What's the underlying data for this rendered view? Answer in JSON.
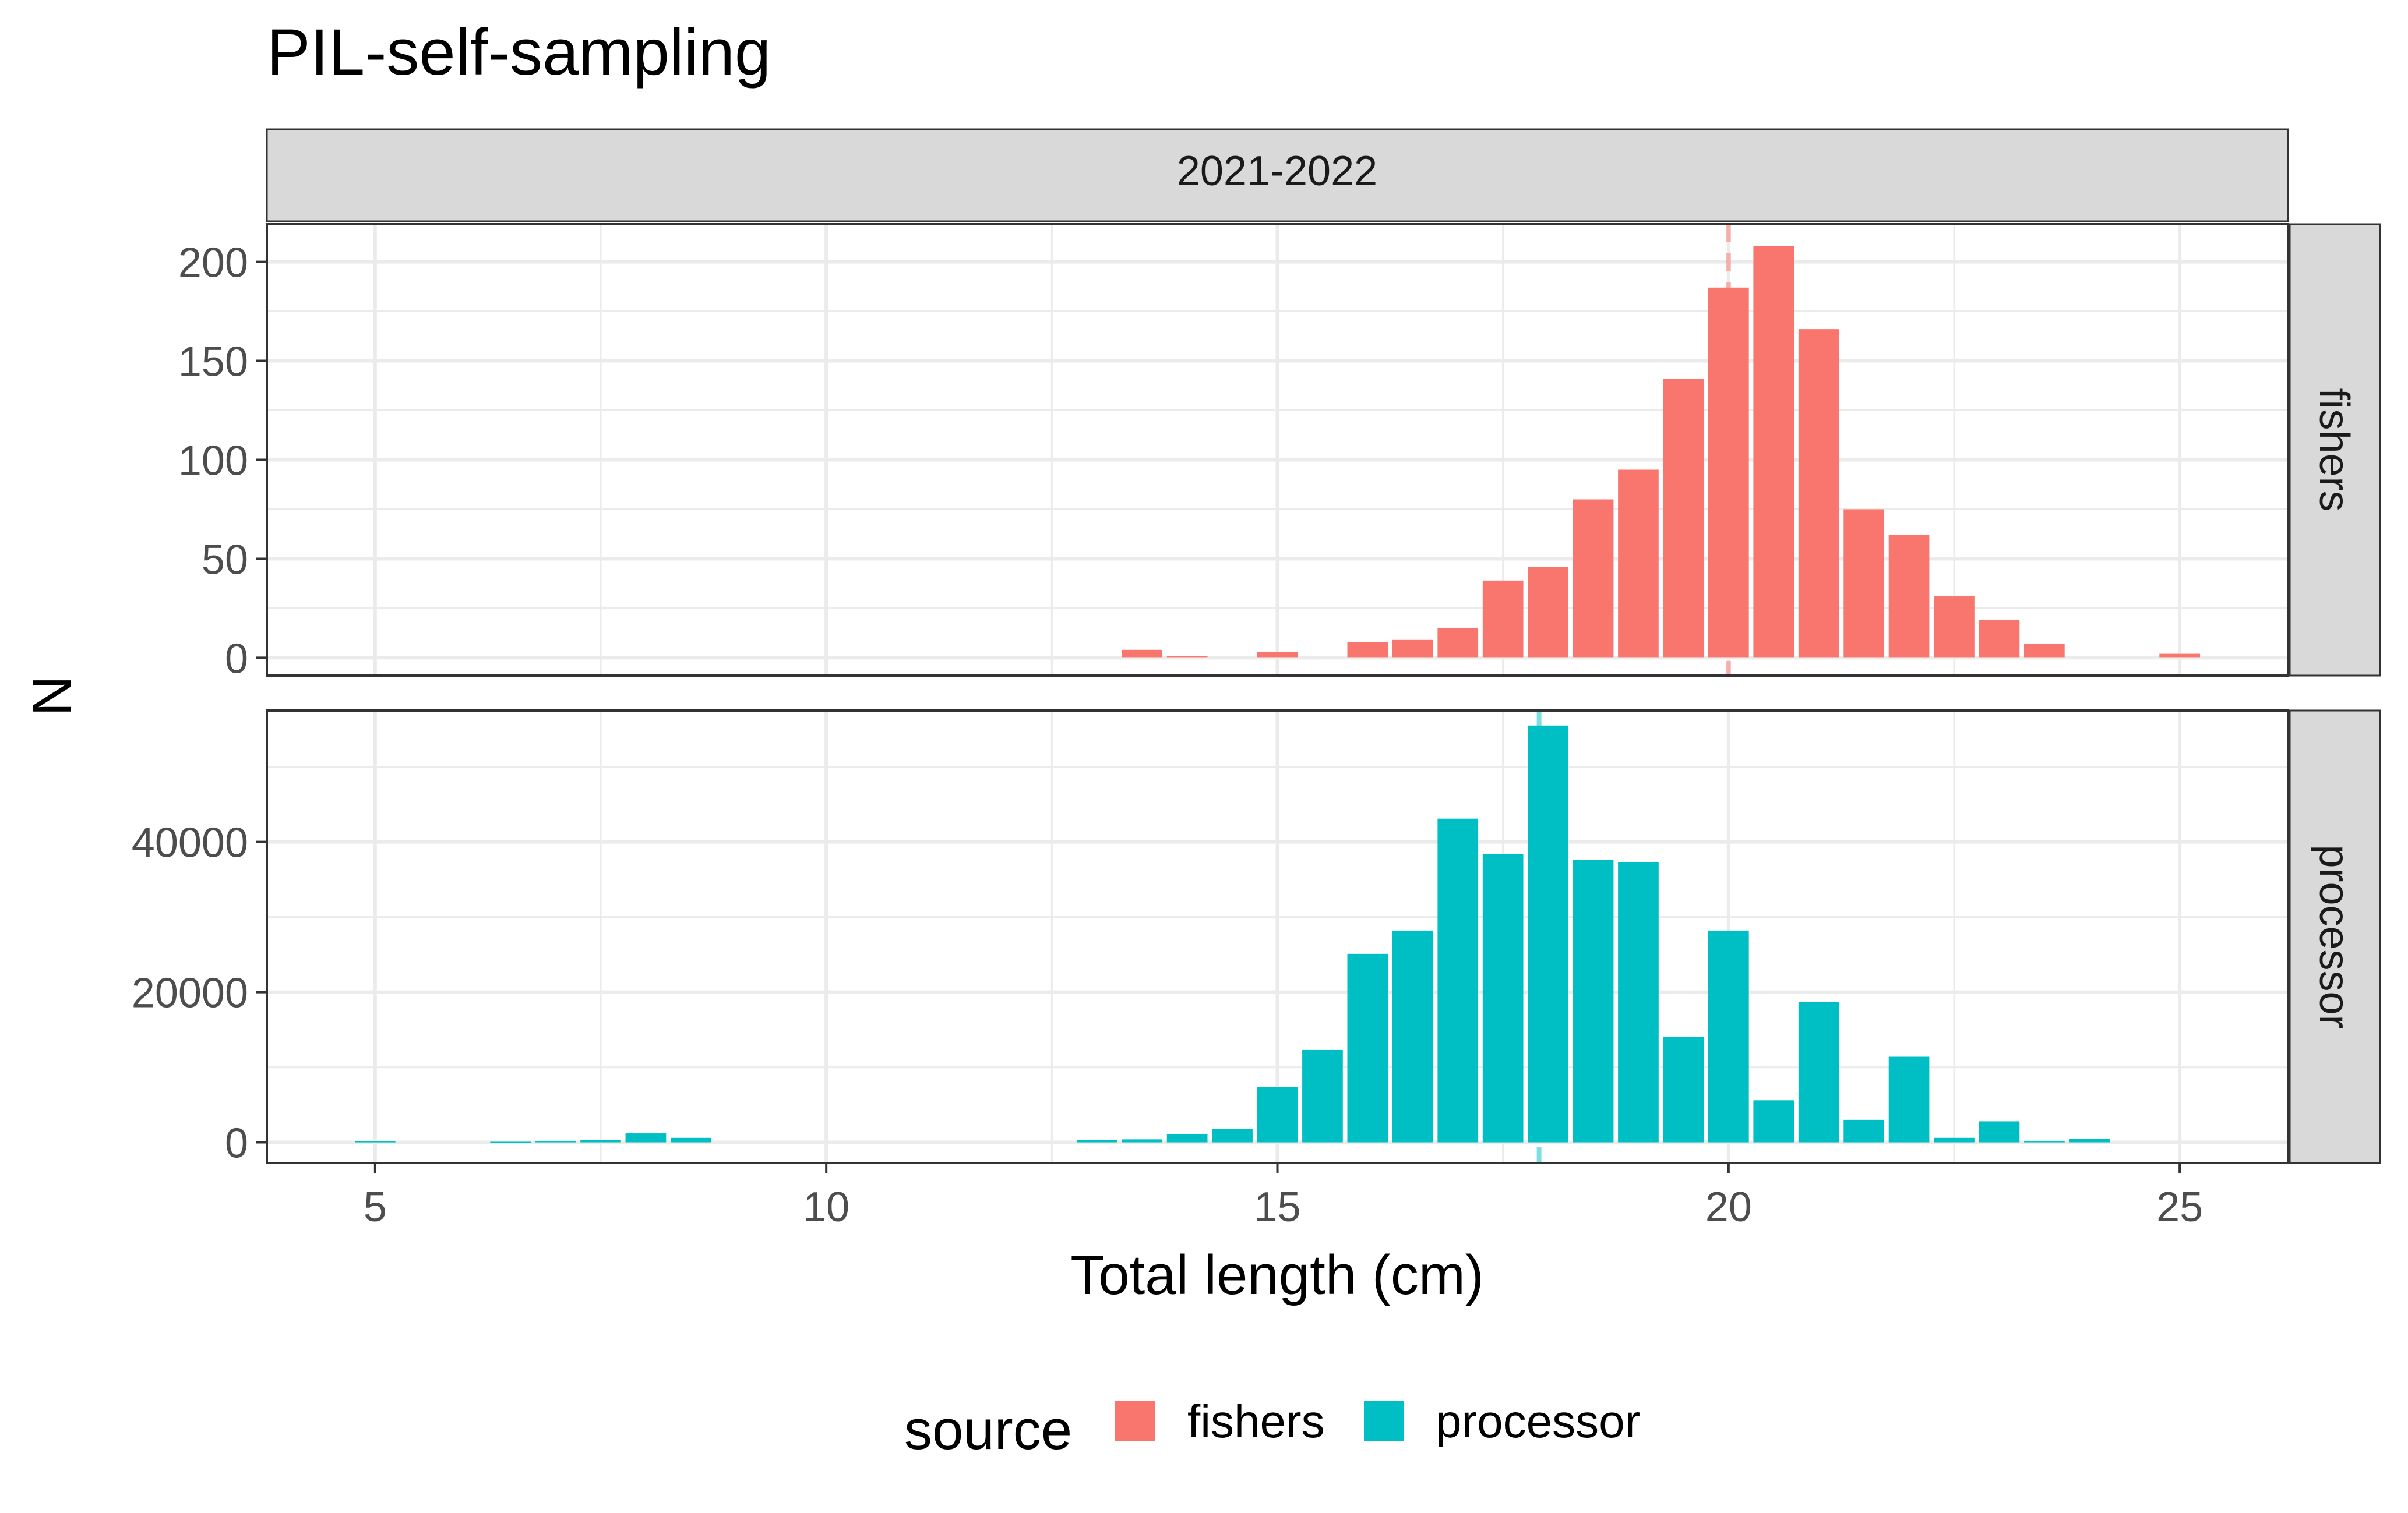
{
  "chart_data": {
    "type": "bar",
    "title": "PIL-self-sampling",
    "facet_column_label": "2021-2022",
    "xlabel": "Total length (cm)",
    "ylabel": "N",
    "xlim": [
      3.8,
      26.2
    ],
    "x_ticks": [
      5,
      10,
      15,
      20,
      25
    ],
    "bin_width": 0.5,
    "grid": true,
    "legend": {
      "title": "source",
      "position": "bottom",
      "entries": [
        {
          "label": "fishers",
          "color": "#F8766D"
        },
        {
          "label": "processor",
          "color": "#00BFC4"
        }
      ]
    },
    "panels": [
      {
        "name": "fishers",
        "strip_label": "fishers",
        "color": "#F8766D",
        "ylim": [
          -9,
          219
        ],
        "y_ticks": [
          0,
          50,
          100,
          150,
          200
        ],
        "y_tick_labels": [
          "0",
          "50",
          "100",
          "150",
          "200"
        ],
        "mean_line_x": 20.0,
        "x": [
          13.5,
          14.0,
          15.0,
          16.0,
          16.5,
          17.0,
          17.5,
          18.0,
          18.5,
          19.0,
          19.5,
          20.0,
          20.5,
          21.0,
          21.5,
          22.0,
          22.5,
          23.0,
          23.5,
          25.0
        ],
        "y": [
          4,
          1,
          3,
          8,
          9,
          15,
          39,
          46,
          80,
          95,
          141,
          187,
          208,
          166,
          75,
          62,
          31,
          19,
          7,
          2
        ]
      },
      {
        "name": "processor",
        "strip_label": "processor",
        "color": "#00BFC4",
        "ylim": [
          -2750,
          57500
        ],
        "y_ticks": [
          0,
          20000,
          40000
        ],
        "y_tick_labels": [
          "0",
          "20000",
          "40000"
        ],
        "mean_line_x": 17.9,
        "x": [
          5.0,
          6.5,
          7.0,
          7.5,
          8.0,
          8.5,
          13.0,
          13.5,
          14.0,
          14.5,
          15.0,
          15.5,
          16.0,
          16.5,
          17.0,
          17.5,
          18.0,
          18.5,
          19.0,
          19.5,
          20.0,
          20.5,
          21.0,
          21.5,
          22.0,
          22.5,
          23.0,
          23.5,
          24.0
        ],
        "y": [
          150,
          80,
          200,
          300,
          1200,
          600,
          300,
          400,
          1100,
          1800,
          7400,
          12300,
          25100,
          28200,
          43100,
          38400,
          55500,
          37600,
          37300,
          14000,
          28200,
          5600,
          18700,
          3000,
          11400,
          600,
          2800,
          200,
          500
        ]
      }
    ]
  }
}
